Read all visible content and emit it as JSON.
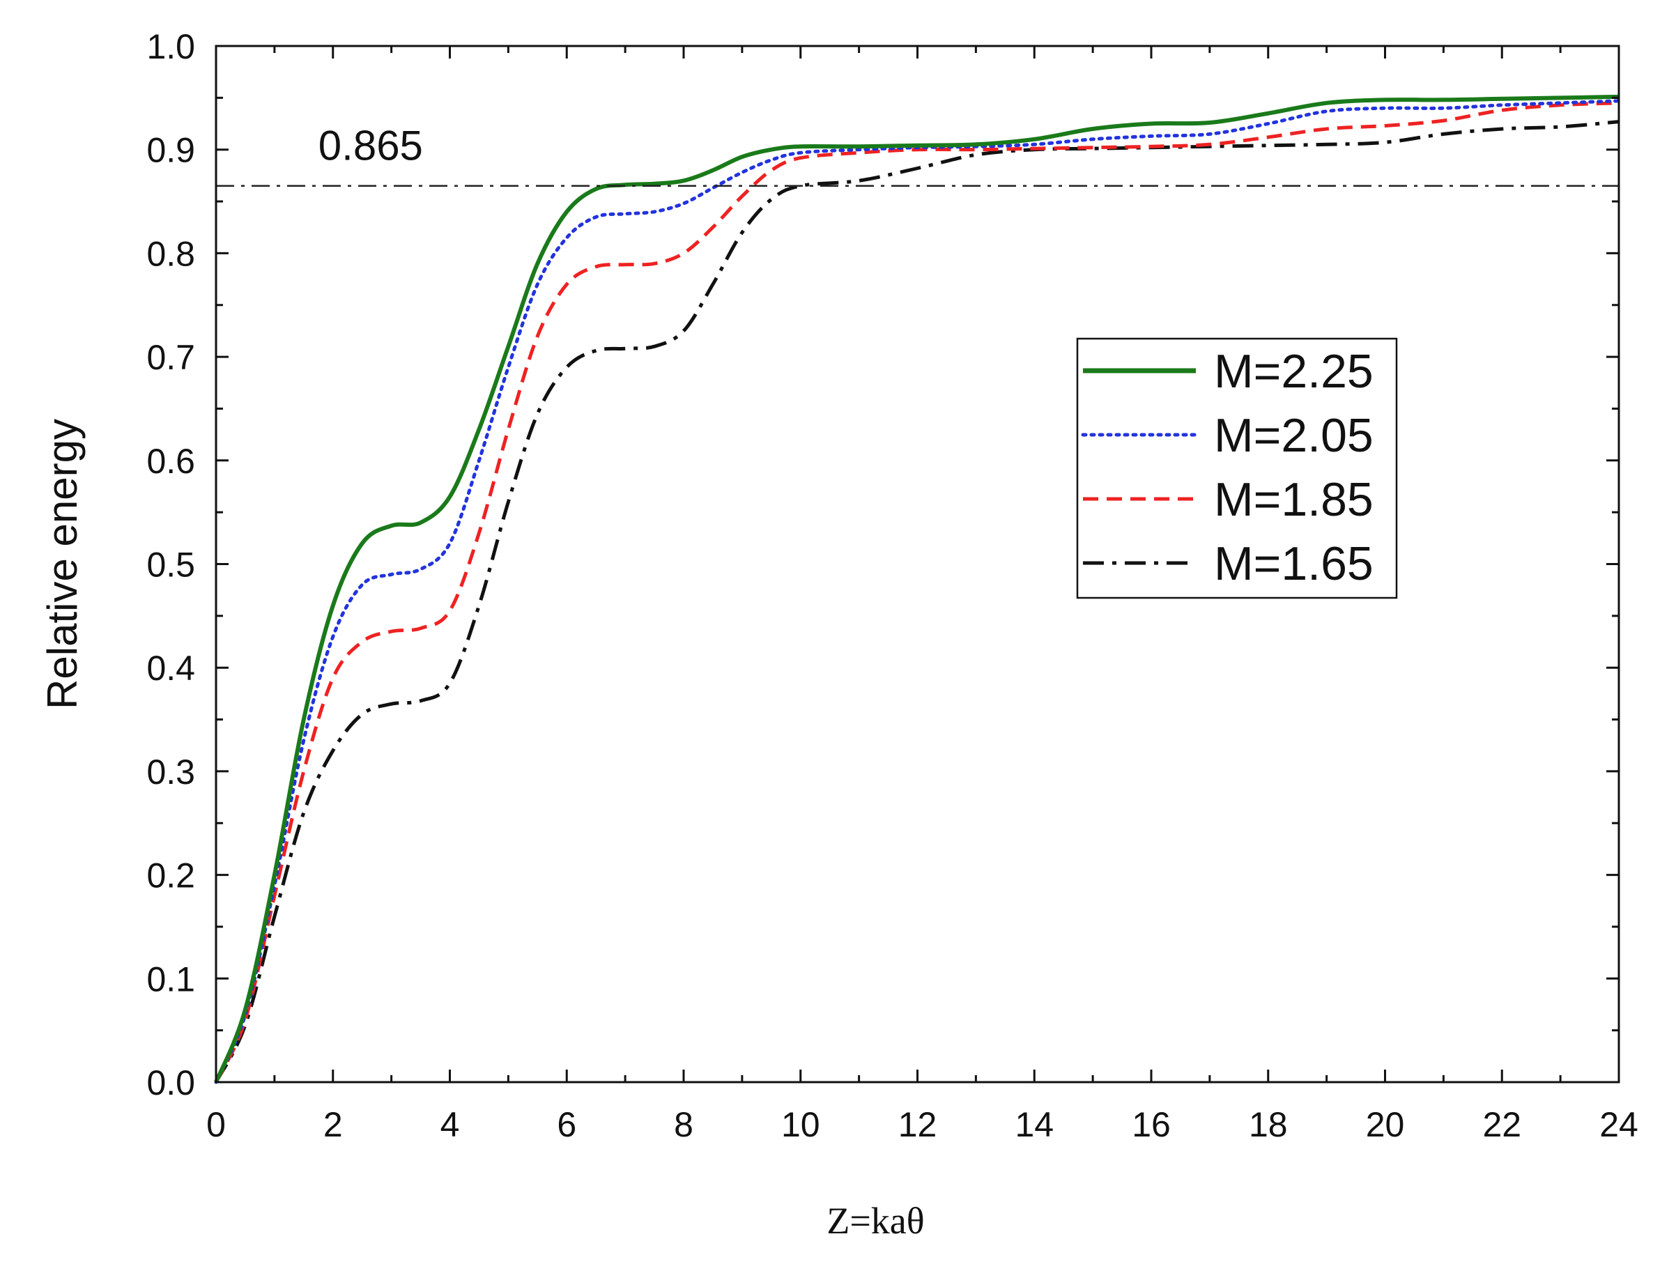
{
  "chart_data": {
    "type": "line",
    "title": "",
    "xlabel": "Z=kaθ",
    "ylabel": "Relative energy",
    "xlim": [
      0,
      24
    ],
    "ylim": [
      0,
      1.0
    ],
    "x_ticks": [
      0,
      2,
      4,
      6,
      8,
      10,
      12,
      14,
      16,
      18,
      20,
      22,
      24
    ],
    "y_ticks": [
      0.0,
      0.1,
      0.2,
      0.3,
      0.4,
      0.5,
      0.6,
      0.7,
      0.8,
      0.9,
      1.0
    ],
    "x_tick_labels": [
      "0",
      "2",
      "4",
      "6",
      "8",
      "10",
      "12",
      "14",
      "16",
      "18",
      "20",
      "22",
      "24"
    ],
    "y_tick_labels": [
      "0.0",
      "0.1",
      "0.2",
      "0.3",
      "0.4",
      "0.5",
      "0.6",
      "0.7",
      "0.8",
      "0.9",
      "1.0"
    ],
    "grid": false,
    "legend_position": "middle-right",
    "reference_line": {
      "y": 0.865,
      "label": "0.865",
      "style": "dash-dot"
    },
    "series": [
      {
        "name": "M=2.25",
        "color": "#1a7a1a",
        "style": "solid",
        "x": [
          0,
          0.5,
          1,
          1.5,
          2,
          2.5,
          3,
          3.5,
          4,
          4.5,
          5,
          5.5,
          6,
          6.5,
          7,
          7.5,
          8,
          8.5,
          9,
          9.5,
          10,
          11,
          12,
          13,
          14,
          15,
          16,
          17,
          18,
          19,
          20,
          21,
          22,
          23,
          24
        ],
        "y": [
          0.0,
          0.07,
          0.2,
          0.35,
          0.46,
          0.52,
          0.537,
          0.54,
          0.565,
          0.63,
          0.71,
          0.79,
          0.84,
          0.862,
          0.866,
          0.867,
          0.87,
          0.88,
          0.893,
          0.9,
          0.903,
          0.903,
          0.904,
          0.905,
          0.91,
          0.92,
          0.925,
          0.926,
          0.935,
          0.945,
          0.948,
          0.948,
          0.949,
          0.95,
          0.951
        ]
      },
      {
        "name": "M=2.05",
        "color": "#2233dd",
        "style": "dotted",
        "x": [
          0,
          0.5,
          1,
          1.5,
          2,
          2.5,
          3,
          3.5,
          4,
          4.5,
          5,
          5.5,
          6,
          6.5,
          7,
          7.5,
          8,
          8.5,
          9,
          9.5,
          10,
          11,
          12,
          13,
          14,
          15,
          16,
          17,
          18,
          19,
          20,
          21,
          22,
          23,
          24
        ],
        "y": [
          0.0,
          0.065,
          0.19,
          0.33,
          0.43,
          0.48,
          0.49,
          0.495,
          0.52,
          0.6,
          0.69,
          0.77,
          0.815,
          0.835,
          0.838,
          0.84,
          0.848,
          0.863,
          0.878,
          0.89,
          0.897,
          0.9,
          0.902,
          0.903,
          0.905,
          0.91,
          0.913,
          0.915,
          0.925,
          0.937,
          0.94,
          0.94,
          0.943,
          0.945,
          0.947
        ]
      },
      {
        "name": "M=1.85",
        "color": "#ee2222",
        "style": "dashed",
        "x": [
          0,
          0.5,
          1,
          1.5,
          2,
          2.5,
          3,
          3.5,
          4,
          4.5,
          5,
          5.5,
          6,
          6.5,
          7,
          7.5,
          8,
          8.5,
          9,
          9.5,
          10,
          11,
          12,
          13,
          14,
          15,
          16,
          17,
          18,
          19,
          20,
          21,
          22,
          23,
          24
        ],
        "y": [
          0.0,
          0.06,
          0.18,
          0.3,
          0.39,
          0.425,
          0.435,
          0.438,
          0.455,
          0.53,
          0.63,
          0.72,
          0.77,
          0.787,
          0.789,
          0.79,
          0.8,
          0.825,
          0.855,
          0.88,
          0.892,
          0.897,
          0.9,
          0.9,
          0.901,
          0.902,
          0.903,
          0.905,
          0.912,
          0.92,
          0.923,
          0.928,
          0.938,
          0.943,
          0.945
        ]
      },
      {
        "name": "M=1.65",
        "color": "#111111",
        "style": "dash-dot",
        "x": [
          0,
          0.5,
          1,
          1.5,
          2,
          2.5,
          3,
          3.5,
          4,
          4.5,
          5,
          5.5,
          6,
          6.5,
          7,
          7.5,
          8,
          8.5,
          9,
          9.5,
          10,
          11,
          12,
          13,
          14,
          15,
          16,
          17,
          18,
          19,
          20,
          21,
          22,
          23,
          24
        ],
        "y": [
          0.0,
          0.055,
          0.16,
          0.26,
          0.32,
          0.355,
          0.365,
          0.368,
          0.385,
          0.46,
          0.56,
          0.645,
          0.69,
          0.706,
          0.708,
          0.71,
          0.725,
          0.77,
          0.82,
          0.852,
          0.865,
          0.87,
          0.882,
          0.895,
          0.9,
          0.901,
          0.902,
          0.903,
          0.904,
          0.905,
          0.907,
          0.915,
          0.92,
          0.922,
          0.927
        ]
      }
    ]
  }
}
